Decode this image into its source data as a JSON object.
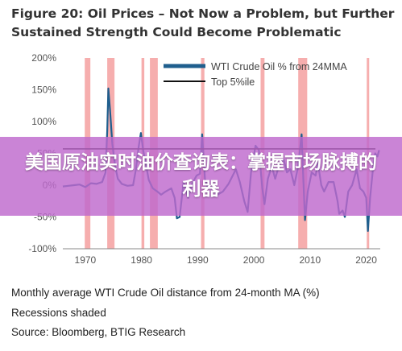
{
  "figure": {
    "title": "Figure 20: Oil Prices – Not Now a Problem, but Further Sustained Strength Could Become Problematic",
    "caption": "Monthly average WTI Crude Oil distance from 24-month MA (%)",
    "recessions_note": "Recessions shaded",
    "source": "Source: Bloomberg, BTIG Research"
  },
  "overlay": {
    "text": "美国原油实时油价查询表：掌握市场脉搏的利器",
    "color": "#be69cd"
  },
  "chart_data": {
    "type": "line",
    "title": "",
    "xlabel": "",
    "ylabel": "",
    "xlim": [
      1966,
      2022.5
    ],
    "ylim": [
      -100,
      200
    ],
    "x_ticks": [
      1970,
      1980,
      1990,
      2000,
      2010,
      2020
    ],
    "y_ticks": [
      200,
      150,
      100,
      50,
      0,
      -50,
      -100
    ],
    "y_tick_labels": [
      "200%",
      "150%",
      "100%",
      "50%",
      "0%",
      "-50%",
      "-100%"
    ],
    "grid": false,
    "legend_position": "top-right",
    "recessions": [
      [
        1969.9,
        1970.9
      ],
      [
        1973.9,
        1975.2
      ],
      [
        1980.0,
        1980.5
      ],
      [
        1981.5,
        1982.9
      ],
      [
        1990.6,
        1991.2
      ],
      [
        2001.2,
        2001.9
      ],
      [
        2007.9,
        2009.5
      ],
      [
        2020.1,
        2020.4
      ]
    ],
    "recession_color": "#f4a0a0",
    "series": [
      {
        "name": "WTI Crude Oil % from 24MMA",
        "color": "#1f5f8e",
        "points": [
          [
            1966,
            -2
          ],
          [
            1967,
            -1
          ],
          [
            1968,
            0
          ],
          [
            1969,
            1
          ],
          [
            1970,
            -3
          ],
          [
            1971,
            3
          ],
          [
            1972,
            2
          ],
          [
            1973,
            5
          ],
          [
            1973.6,
            20
          ],
          [
            1973.9,
            85
          ],
          [
            1974.1,
            152
          ],
          [
            1974.4,
            118
          ],
          [
            1974.8,
            65
          ],
          [
            1975.3,
            30
          ],
          [
            1975.8,
            10
          ],
          [
            1976.5,
            2
          ],
          [
            1977.5,
            -1
          ],
          [
            1978.5,
            0
          ],
          [
            1979.0,
            25
          ],
          [
            1979.5,
            60
          ],
          [
            1979.9,
            82
          ],
          [
            1980.3,
            55
          ],
          [
            1980.8,
            32
          ],
          [
            1981.3,
            8
          ],
          [
            1982,
            -5
          ],
          [
            1982.8,
            -10
          ],
          [
            1983.5,
            -15
          ],
          [
            1984.3,
            -10
          ],
          [
            1985.3,
            -5
          ],
          [
            1985.9,
            -20
          ],
          [
            1986.3,
            -52
          ],
          [
            1986.8,
            -50
          ],
          [
            1987.5,
            5
          ],
          [
            1988.3,
            -20
          ],
          [
            1989,
            2
          ],
          [
            1989.8,
            15
          ],
          [
            1990.4,
            18
          ],
          [
            1990.8,
            80
          ],
          [
            1991.3,
            10
          ],
          [
            1991.8,
            -5
          ],
          [
            1992.5,
            -3
          ],
          [
            1993.5,
            -15
          ],
          [
            1994.5,
            -10
          ],
          [
            1995.5,
            2
          ],
          [
            1996.8,
            25
          ],
          [
            1997.5,
            5
          ],
          [
            1998.3,
            -25
          ],
          [
            1998.9,
            -42
          ],
          [
            1999.5,
            20
          ],
          [
            2000.3,
            62
          ],
          [
            2000.9,
            55
          ],
          [
            2001.5,
            -5
          ],
          [
            2001.9,
            -30
          ],
          [
            2002.5,
            10
          ],
          [
            2003.2,
            30
          ],
          [
            2003.8,
            10
          ],
          [
            2004.6,
            35
          ],
          [
            2005.3,
            40
          ],
          [
            2005.9,
            20
          ],
          [
            2006.5,
            25
          ],
          [
            2007.2,
            0
          ],
          [
            2007.9,
            30
          ],
          [
            2008.5,
            80
          ],
          [
            2008.8,
            10
          ],
          [
            2009.1,
            -55
          ],
          [
            2009.6,
            -10
          ],
          [
            2010.3,
            20
          ],
          [
            2011.0,
            15
          ],
          [
            2011.4,
            35
          ],
          [
            2012,
            0
          ],
          [
            2012.5,
            -10
          ],
          [
            2013.3,
            5
          ],
          [
            2014.2,
            5
          ],
          [
            2014.9,
            -25
          ],
          [
            2015.2,
            -45
          ],
          [
            2015.8,
            -40
          ],
          [
            2016.2,
            -50
          ],
          [
            2016.8,
            -10
          ],
          [
            2017.5,
            0
          ],
          [
            2018.3,
            25
          ],
          [
            2018.9,
            -5
          ],
          [
            2019.5,
            -10
          ],
          [
            2020.0,
            -20
          ],
          [
            2020.3,
            -72
          ],
          [
            2020.7,
            -20
          ],
          [
            2021.2,
            25
          ],
          [
            2021.6,
            50
          ],
          [
            2022.0,
            45
          ],
          [
            2022.3,
            55
          ]
        ]
      },
      {
        "name": "Top 5%ile",
        "color": "#111111",
        "value": 57
      }
    ]
  }
}
